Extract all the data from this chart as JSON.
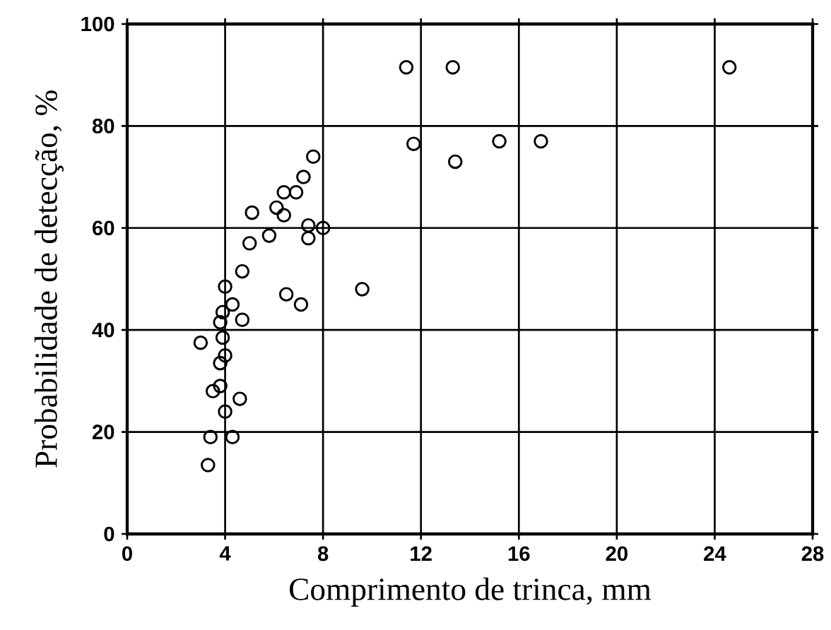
{
  "chart_data": {
    "type": "scatter",
    "xlabel": "Comprimento  de trinca, mm",
    "ylabel": "Probabilidade de detecção, %",
    "x": [
      11.4,
      13.3,
      24.6,
      11.7,
      13.4,
      15.2,
      16.9,
      9.6,
      7.6,
      7.2,
      6.4,
      6.9,
      6.1,
      6.4,
      5.1,
      7.4,
      8.0,
      7.4,
      5.8,
      5.0,
      4.7,
      4.0,
      6.5,
      7.1,
      4.3,
      3.9,
      4.7,
      3.8,
      3.0,
      3.9,
      4.0,
      3.8,
      3.8,
      3.5,
      4.6,
      4.0,
      3.4,
      4.3,
      3.3
    ],
    "values": [
      91.5,
      91.5,
      91.5,
      76.5,
      73,
      77,
      77,
      48,
      74,
      70,
      67,
      67,
      64,
      62.5,
      63,
      60.5,
      60,
      58,
      58.5,
      57,
      51.5,
      48.5,
      47,
      45,
      45,
      43.5,
      42,
      41.5,
      37.5,
      38.5,
      35,
      33.5,
      29,
      28,
      26.5,
      24,
      19,
      19,
      13.5
    ],
    "color": "#000000",
    "marker": "circle",
    "grid": true,
    "xlim": [
      0,
      28
    ],
    "ylim": [
      0,
      100
    ],
    "xticks": [
      0,
      4,
      8,
      12,
      16,
      20,
      24,
      28
    ],
    "yticks": [
      0,
      20,
      40,
      60,
      80,
      100
    ]
  }
}
